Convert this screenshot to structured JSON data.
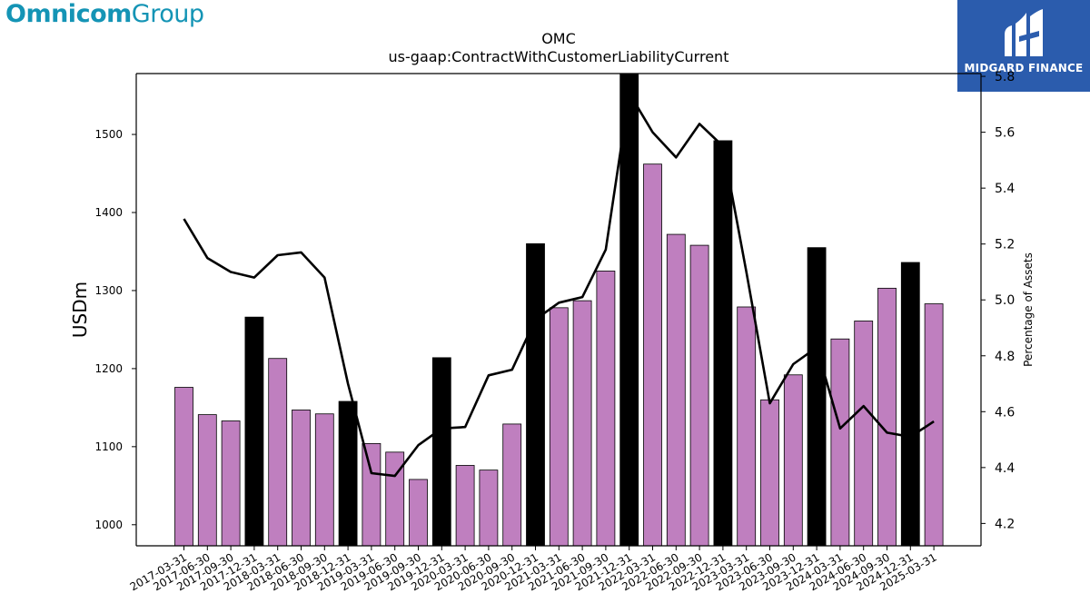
{
  "brand": {
    "left_logo_bold": "Omnicom",
    "left_logo_light": "Group",
    "left_logo_color": "#1494b5",
    "right_logo_text": "MIDGARD FINANCE",
    "right_logo_bg": "#2b5cad"
  },
  "chart_data": {
    "type": "bar",
    "title": "OMC",
    "subtitle": "us-gaap:ContractWithCustomerLiabilityCurrent",
    "ylabel": "USDm",
    "y2label": "Percentage of Assets",
    "ylim": [
      973,
      1578
    ],
    "y2lim": [
      4.12,
      5.81
    ],
    "yticks": [
      1000,
      1100,
      1200,
      1300,
      1400,
      1500
    ],
    "y2ticks": [
      4.2,
      4.4,
      4.6,
      4.8,
      5.0,
      5.2,
      5.4,
      5.6,
      5.8
    ],
    "bar_color": "#bf7fbf",
    "highlight_color": "#000000",
    "line_color": "#000000",
    "categories": [
      "2017-03-31",
      "2017-06-30",
      "2017-09-30",
      "2017-12-31",
      "2018-03-31",
      "2018-06-30",
      "2018-09-30",
      "2018-12-31",
      "2019-03-31",
      "2019-06-30",
      "2019-09-30",
      "2019-12-31",
      "2020-03-31",
      "2020-06-30",
      "2020-09-30",
      "2020-12-31",
      "2021-03-31",
      "2021-06-30",
      "2021-09-30",
      "2021-12-31",
      "2022-03-31",
      "2022-06-30",
      "2022-09-30",
      "2022-12-31",
      "2023-03-31",
      "2023-06-30",
      "2023-09-30",
      "2023-12-31",
      "2024-03-31",
      "2024-06-30",
      "2024-09-30",
      "2024-12-31",
      "2025-03-31"
    ],
    "series": [
      {
        "type": "bar",
        "axis": "left",
        "values": [
          1176,
          1141,
          1133,
          1266,
          1213,
          1147,
          1142,
          1158,
          1104,
          1093,
          1058,
          1214,
          1076,
          1070,
          1129,
          1360,
          1278,
          1287,
          1325,
          1580,
          1462,
          1372,
          1358,
          1492,
          1279,
          1160,
          1192,
          1355,
          1238,
          1261,
          1303,
          1336,
          1283
        ],
        "highlight": [
          false,
          false,
          false,
          true,
          false,
          false,
          false,
          true,
          false,
          false,
          false,
          true,
          false,
          false,
          false,
          true,
          false,
          false,
          false,
          true,
          false,
          false,
          false,
          true,
          false,
          false,
          false,
          true,
          false,
          false,
          false,
          true,
          false
        ]
      },
      {
        "type": "line",
        "axis": "right",
        "values": [
          5.29,
          5.15,
          5.1,
          5.08,
          5.16,
          5.17,
          5.08,
          4.7,
          4.38,
          4.37,
          4.48,
          4.54,
          4.545,
          4.73,
          4.75,
          4.93,
          4.99,
          5.01,
          5.18,
          5.74,
          5.6,
          5.51,
          5.63,
          5.55,
          5.1,
          4.63,
          4.77,
          4.83,
          4.54,
          4.62,
          4.525,
          4.51,
          4.565
        ]
      }
    ],
    "legend": "none",
    "grid": false
  }
}
